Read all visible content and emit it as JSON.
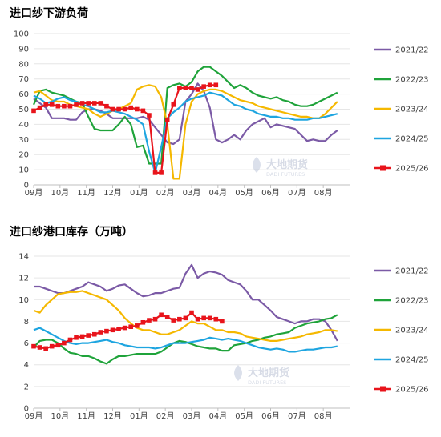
{
  "colors": {
    "2021/22": "#7B5AA6",
    "2022/23": "#1FA33A",
    "2023/24": "#F5B800",
    "2024/25": "#1EA5E0",
    "2025/26": "#E8141B"
  },
  "watermark": {
    "cn": "大地期货",
    "en": "DADI FUTURES"
  },
  "chart_data": [
    {
      "type": "line",
      "title": "进口纱下游负荷",
      "ylim": [
        0,
        100
      ],
      "yticks": [
        0,
        10,
        20,
        30,
        40,
        50,
        60,
        70,
        80,
        90,
        100
      ],
      "xticks": [
        "09月",
        "10月",
        "11月",
        "12月",
        "01月",
        "02月",
        "03月",
        "04月",
        "05月",
        "06月",
        "07月",
        "08月"
      ],
      "xrange": [
        0,
        52
      ],
      "series": [
        {
          "name": "2021/22",
          "x": [
            0,
            1,
            2,
            3,
            4,
            5,
            6,
            7,
            8,
            9,
            10,
            11,
            12,
            13,
            14,
            15,
            16,
            17,
            18,
            19,
            20,
            21,
            22,
            23,
            24,
            25,
            26,
            27,
            28,
            29,
            30,
            31,
            32,
            33,
            34,
            35,
            36,
            37,
            38,
            39,
            40,
            41,
            42,
            43,
            44,
            45,
            46,
            47,
            48,
            49,
            50
          ],
          "values": [
            57,
            54,
            51,
            44,
            44,
            44,
            43,
            43,
            48,
            50,
            50,
            49,
            47,
            44,
            44,
            44,
            44,
            44,
            45,
            43,
            38,
            33,
            28,
            27,
            30,
            55,
            60,
            67,
            62,
            51,
            30,
            28,
            30,
            33,
            30,
            36,
            40,
            42,
            44,
            38,
            40,
            39,
            38,
            37,
            33,
            29,
            30,
            29,
            29,
            33,
            36
          ]
        },
        {
          "name": "2022/23",
          "x": [
            0,
            1,
            2,
            3,
            4,
            5,
            6,
            7,
            8,
            9,
            10,
            11,
            12,
            13,
            14,
            15,
            16,
            17,
            18,
            19,
            20,
            21,
            22,
            23,
            24,
            25,
            26,
            27,
            28,
            29,
            30,
            31,
            32,
            33,
            34,
            35,
            36,
            37,
            38,
            39,
            40,
            41,
            42,
            43,
            44,
            45,
            46,
            47,
            48,
            49,
            50
          ],
          "values": [
            53,
            62,
            63,
            61,
            60,
            59,
            57,
            55,
            54,
            45,
            37,
            36,
            36,
            36,
            40,
            45,
            40,
            25,
            26,
            14,
            14,
            14,
            64,
            66,
            67,
            65,
            68,
            75,
            78,
            78,
            75,
            72,
            68,
            64,
            66,
            64,
            61,
            59,
            58,
            57,
            58,
            56,
            55,
            53,
            52,
            52,
            53,
            55,
            57,
            59,
            61
          ]
        },
        {
          "name": "2023/24",
          "x": [
            0,
            1,
            2,
            3,
            4,
            5,
            6,
            7,
            8,
            9,
            10,
            11,
            12,
            13,
            14,
            15,
            16,
            17,
            18,
            19,
            20,
            21,
            22,
            23,
            24,
            25,
            26,
            27,
            28,
            29,
            30,
            31,
            32,
            33,
            34,
            35,
            36,
            37,
            38,
            39,
            40,
            41,
            42,
            43,
            44,
            45,
            46,
            47,
            48,
            49,
            50
          ],
          "values": [
            61,
            62,
            59,
            56,
            55,
            55,
            53,
            52,
            51,
            50,
            47,
            45,
            47,
            49,
            50,
            52,
            54,
            63,
            65,
            66,
            65,
            58,
            40,
            4,
            4,
            40,
            55,
            60,
            62,
            63,
            63,
            62,
            60,
            58,
            56,
            55,
            54,
            52,
            51,
            50,
            49,
            48,
            47,
            46,
            45,
            45,
            44,
            44,
            47,
            51,
            55
          ]
        },
        {
          "name": "2024/25",
          "x": [
            0,
            1,
            2,
            3,
            4,
            5,
            6,
            7,
            8,
            9,
            10,
            11,
            12,
            13,
            14,
            15,
            16,
            17,
            18,
            19,
            20,
            21,
            22,
            23,
            24,
            25,
            26,
            27,
            28,
            29,
            30,
            31,
            32,
            33,
            34,
            35,
            36,
            37,
            38,
            39,
            40,
            41,
            42,
            43,
            44,
            45,
            46,
            47,
            48,
            49,
            50
          ],
          "values": [
            59,
            57,
            54,
            55,
            57,
            58,
            56,
            55,
            53,
            52,
            50,
            48,
            48,
            49,
            48,
            47,
            45,
            43,
            40,
            22,
            8,
            25,
            44,
            48,
            51,
            55,
            57,
            58,
            59,
            61,
            60,
            59,
            56,
            53,
            52,
            50,
            49,
            47,
            46,
            45,
            45,
            44,
            44,
            43,
            43,
            43,
            44,
            44,
            45,
            46,
            47
          ]
        },
        {
          "name": "2025/26",
          "x": [
            0,
            1,
            2,
            3,
            4,
            5,
            6,
            7,
            8,
            9,
            10,
            11,
            12,
            13,
            14,
            15,
            16,
            17,
            18,
            19,
            20,
            21,
            22,
            23,
            24,
            25,
            26,
            27,
            28,
            29,
            30,
            31
          ],
          "values": [
            49,
            51,
            53,
            53,
            52,
            52,
            52,
            53,
            54,
            54,
            54,
            54,
            52,
            50,
            50,
            50,
            51,
            50,
            49,
            46,
            8,
            8,
            43,
            53,
            64,
            64,
            64,
            63,
            65,
            66,
            66,
            null
          ]
        }
      ],
      "legend": [
        "2021/22",
        "2022/23",
        "2023/24",
        "2024/25",
        "2025/26"
      ],
      "legend_position": "right"
    },
    {
      "type": "line",
      "title": "进口纱港口库存（万吨）",
      "ylim": [
        0,
        14
      ],
      "yticks": [
        0,
        2,
        4,
        6,
        8,
        10,
        12,
        14
      ],
      "xticks": [
        "09月",
        "10月",
        "11月",
        "12月",
        "01月",
        "02月",
        "03月",
        "04月",
        "05月",
        "06月",
        "07月",
        "08月"
      ],
      "xrange": [
        0,
        52
      ],
      "series": [
        {
          "name": "2021/22",
          "x": [
            0,
            1,
            2,
            3,
            4,
            5,
            6,
            7,
            8,
            9,
            10,
            11,
            12,
            13,
            14,
            15,
            16,
            17,
            18,
            19,
            20,
            21,
            22,
            23,
            24,
            25,
            26,
            27,
            28,
            29,
            30,
            31,
            32,
            33,
            34,
            35,
            36,
            37,
            38,
            39,
            40,
            41,
            42,
            43,
            44,
            45,
            46,
            47,
            48,
            49,
            50
          ],
          "values": [
            11.2,
            11.2,
            11.0,
            10.8,
            10.6,
            10.6,
            10.8,
            11.0,
            11.2,
            11.6,
            11.4,
            11.2,
            10.8,
            11.0,
            11.3,
            11.4,
            11.0,
            10.6,
            10.3,
            10.4,
            10.6,
            10.6,
            10.8,
            11.0,
            11.1,
            12.4,
            13.2,
            12.0,
            12.4,
            12.6,
            12.5,
            12.3,
            11.8,
            11.6,
            11.4,
            10.8,
            10.0,
            10.0,
            9.5,
            9.0,
            8.4,
            8.2,
            8.0,
            7.8,
            8.0,
            8.0,
            8.2,
            8.2,
            8.0,
            7.2,
            6.2
          ]
        },
        {
          "name": "2022/23",
          "x": [
            0,
            1,
            2,
            3,
            4,
            5,
            6,
            7,
            8,
            9,
            10,
            11,
            12,
            13,
            14,
            15,
            16,
            17,
            18,
            19,
            20,
            21,
            22,
            23,
            24,
            25,
            26,
            27,
            28,
            29,
            30,
            31,
            32,
            33,
            34,
            35,
            36,
            37,
            38,
            39,
            40,
            41,
            42,
            43,
            44,
            45,
            46,
            47,
            48,
            49,
            50
          ],
          "values": [
            5.6,
            6.2,
            6.3,
            6.3,
            6.0,
            5.5,
            5.1,
            5.0,
            4.8,
            4.8,
            4.6,
            4.3,
            4.1,
            4.5,
            4.8,
            4.8,
            4.9,
            5.0,
            5.0,
            5.0,
            5.0,
            5.2,
            5.6,
            6.0,
            6.2,
            6.1,
            5.9,
            5.7,
            5.6,
            5.5,
            5.5,
            5.3,
            5.3,
            5.8,
            5.9,
            6.0,
            6.2,
            6.3,
            6.5,
            6.6,
            6.8,
            6.9,
            7.0,
            7.4,
            7.6,
            7.8,
            7.9,
            8.0,
            8.2,
            8.3,
            8.6
          ]
        },
        {
          "name": "2023/24",
          "x": [
            0,
            1,
            2,
            3,
            4,
            5,
            6,
            7,
            8,
            9,
            10,
            11,
            12,
            13,
            14,
            15,
            16,
            17,
            18,
            19,
            20,
            21,
            22,
            23,
            24,
            25,
            26,
            27,
            28,
            29,
            30,
            31,
            32,
            33,
            34,
            35,
            36,
            37,
            38,
            39,
            40,
            41,
            42,
            43,
            44,
            45,
            46,
            47,
            48,
            49,
            50
          ],
          "values": [
            9.0,
            8.8,
            9.5,
            10.0,
            10.5,
            10.6,
            10.7,
            10.7,
            10.8,
            10.6,
            10.4,
            10.2,
            10.0,
            9.5,
            9.0,
            8.3,
            7.8,
            7.4,
            7.2,
            7.2,
            7.0,
            6.8,
            6.8,
            7.0,
            7.2,
            7.6,
            8.0,
            7.8,
            7.8,
            7.5,
            7.2,
            7.2,
            7.0,
            7.0,
            6.9,
            6.6,
            6.5,
            6.4,
            6.3,
            6.2,
            6.2,
            6.3,
            6.4,
            6.5,
            6.6,
            6.8,
            6.9,
            7.0,
            7.2,
            7.2,
            7.1
          ]
        },
        {
          "name": "2024/25",
          "x": [
            0,
            1,
            2,
            3,
            4,
            5,
            6,
            7,
            8,
            9,
            10,
            11,
            12,
            13,
            14,
            15,
            16,
            17,
            18,
            19,
            20,
            21,
            22,
            23,
            24,
            25,
            26,
            27,
            28,
            29,
            30,
            31,
            32,
            33,
            34,
            35,
            36,
            37,
            38,
            39,
            40,
            41,
            42,
            43,
            44,
            45,
            46,
            47,
            48,
            49,
            50
          ],
          "values": [
            7.2,
            7.4,
            7.1,
            6.8,
            6.5,
            6.2,
            6.0,
            5.9,
            6.0,
            6.0,
            6.1,
            6.2,
            6.3,
            6.1,
            6.0,
            5.8,
            5.7,
            5.6,
            5.6,
            5.6,
            5.5,
            5.6,
            5.8,
            6.0,
            6.0,
            6.0,
            6.1,
            6.2,
            6.3,
            6.5,
            6.4,
            6.3,
            6.4,
            6.3,
            6.2,
            6.0,
            5.8,
            5.6,
            5.5,
            5.4,
            5.5,
            5.4,
            5.2,
            5.2,
            5.3,
            5.4,
            5.4,
            5.5,
            5.6,
            5.6,
            5.7
          ]
        },
        {
          "name": "2025/26",
          "x": [
            0,
            1,
            2,
            3,
            4,
            5,
            6,
            7,
            8,
            9,
            10,
            11,
            12,
            13,
            14,
            15,
            16,
            17,
            18,
            19,
            20,
            21,
            22,
            23,
            24,
            25,
            26,
            27,
            28,
            29,
            30,
            31
          ],
          "values": [
            5.7,
            5.6,
            5.5,
            5.7,
            5.8,
            6.0,
            6.3,
            6.5,
            6.6,
            6.7,
            6.8,
            7.0,
            7.1,
            7.2,
            7.3,
            7.4,
            7.5,
            7.6,
            7.9,
            8.1,
            8.2,
            8.6,
            8.4,
            8.1,
            8.2,
            8.3,
            8.8,
            8.2,
            8.3,
            8.3,
            8.2,
            8.0
          ]
        }
      ],
      "legend": [
        "2021/22",
        "2022/23",
        "2023/24",
        "2024/25",
        "2025/26"
      ],
      "legend_position": "right"
    }
  ]
}
